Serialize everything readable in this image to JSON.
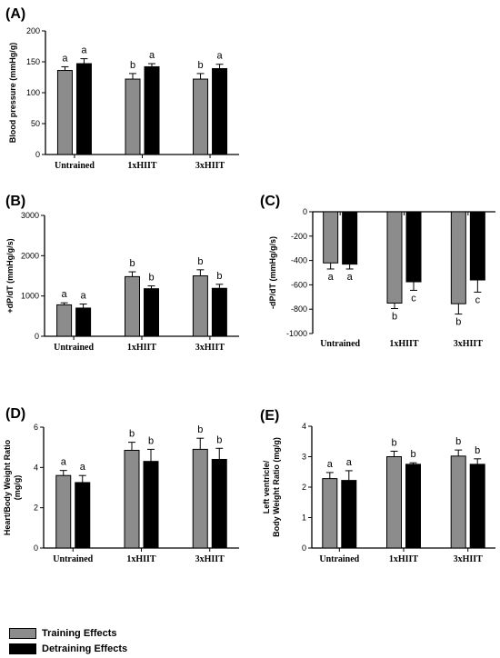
{
  "colors": {
    "training": "#8c8c8c",
    "detraining": "#000000"
  },
  "legend": {
    "training_label": "Training Effects",
    "detraining_label": "Detraining Effects"
  },
  "chart_data": [
    {
      "panel": "(A)",
      "type": "bar",
      "categories": [
        "Untrained",
        "1xHIIT",
        "3xHIIT"
      ],
      "ylabel": "Blood pressure (mmHg/g)",
      "ylim": [
        0,
        200
      ],
      "yticks": [
        "0",
        "50",
        "100",
        "150",
        "200"
      ],
      "series": [
        {
          "key": "training",
          "values": [
            136,
            122,
            122
          ],
          "errors": [
            6,
            9,
            9
          ],
          "labels": [
            "a",
            "b",
            "b"
          ]
        },
        {
          "key": "detraining",
          "values": [
            147,
            142,
            139
          ],
          "errors": [
            8,
            5,
            7
          ],
          "labels": [
            "a",
            "a",
            "a"
          ]
        }
      ]
    },
    {
      "panel": "(B)",
      "type": "bar",
      "categories": [
        "Untrained",
        "1xHIIT",
        "3xHIIT"
      ],
      "ylabel": "+dP/dT (mmHg/g/s)",
      "ylim": [
        0,
        3000
      ],
      "yticks": [
        "0",
        "1000",
        "2000",
        "3000"
      ],
      "series": [
        {
          "key": "training",
          "values": [
            780,
            1480,
            1500
          ],
          "errors": [
            50,
            120,
            150
          ],
          "labels": [
            "a",
            "b",
            "b"
          ]
        },
        {
          "key": "detraining",
          "values": [
            700,
            1180,
            1190
          ],
          "errors": [
            100,
            70,
            100
          ],
          "labels": [
            "a",
            "b",
            "b"
          ]
        }
      ]
    },
    {
      "panel": "(C)",
      "type": "bar",
      "categories": [
        "Untrained",
        "1xHIIT",
        "3xHIIT"
      ],
      "ylabel": "-dP/dT (mmHg/g/s)",
      "ylim": [
        -1000,
        0
      ],
      "yticks": [
        "0",
        "-200",
        "-400",
        "-600",
        "-800",
        "-1000"
      ],
      "series": [
        {
          "key": "training",
          "values": [
            -420,
            -750,
            -755
          ],
          "errors": [
            50,
            45,
            85
          ],
          "labels": [
            "a",
            "b",
            "b"
          ]
        },
        {
          "key": "detraining",
          "values": [
            -430,
            -575,
            -560
          ],
          "errors": [
            40,
            70,
            100
          ],
          "labels": [
            "a",
            "c",
            "c"
          ]
        }
      ]
    },
    {
      "panel": "(D)",
      "type": "bar",
      "categories": [
        "Untrained",
        "1xHIIT",
        "3xHIIT"
      ],
      "ylabel_lines": [
        "Heart/Body Weight Ratio",
        "(mg/g)"
      ],
      "ylim": [
        0,
        6
      ],
      "yticks": [
        "0",
        "2",
        "4",
        "6"
      ],
      "series": [
        {
          "key": "training",
          "values": [
            3.6,
            4.85,
            4.9
          ],
          "errors": [
            0.25,
            0.4,
            0.55
          ],
          "labels": [
            "a",
            "b",
            "b"
          ]
        },
        {
          "key": "detraining",
          "values": [
            3.25,
            4.3,
            4.4
          ],
          "errors": [
            0.35,
            0.6,
            0.55
          ],
          "labels": [
            "a",
            "b",
            "b"
          ]
        }
      ]
    },
    {
      "panel": "(E)",
      "type": "bar",
      "categories": [
        "Untrained",
        "1xHIIT",
        "3xHIIT"
      ],
      "ylabel_lines": [
        "Left ventricle/",
        "Body Weight Ratio (mg/g)"
      ],
      "ylim": [
        0,
        4
      ],
      "yticks": [
        "0",
        "1",
        "2",
        "3",
        "4"
      ],
      "series": [
        {
          "key": "training",
          "values": [
            2.28,
            3.0,
            3.02
          ],
          "errors": [
            0.2,
            0.18,
            0.2
          ],
          "labels": [
            "a",
            "b",
            "b"
          ]
        },
        {
          "key": "detraining",
          "values": [
            2.22,
            2.75,
            2.75
          ],
          "errors": [
            0.32,
            0.05,
            0.18
          ],
          "labels": [
            "a",
            "b",
            "b"
          ]
        }
      ]
    }
  ]
}
